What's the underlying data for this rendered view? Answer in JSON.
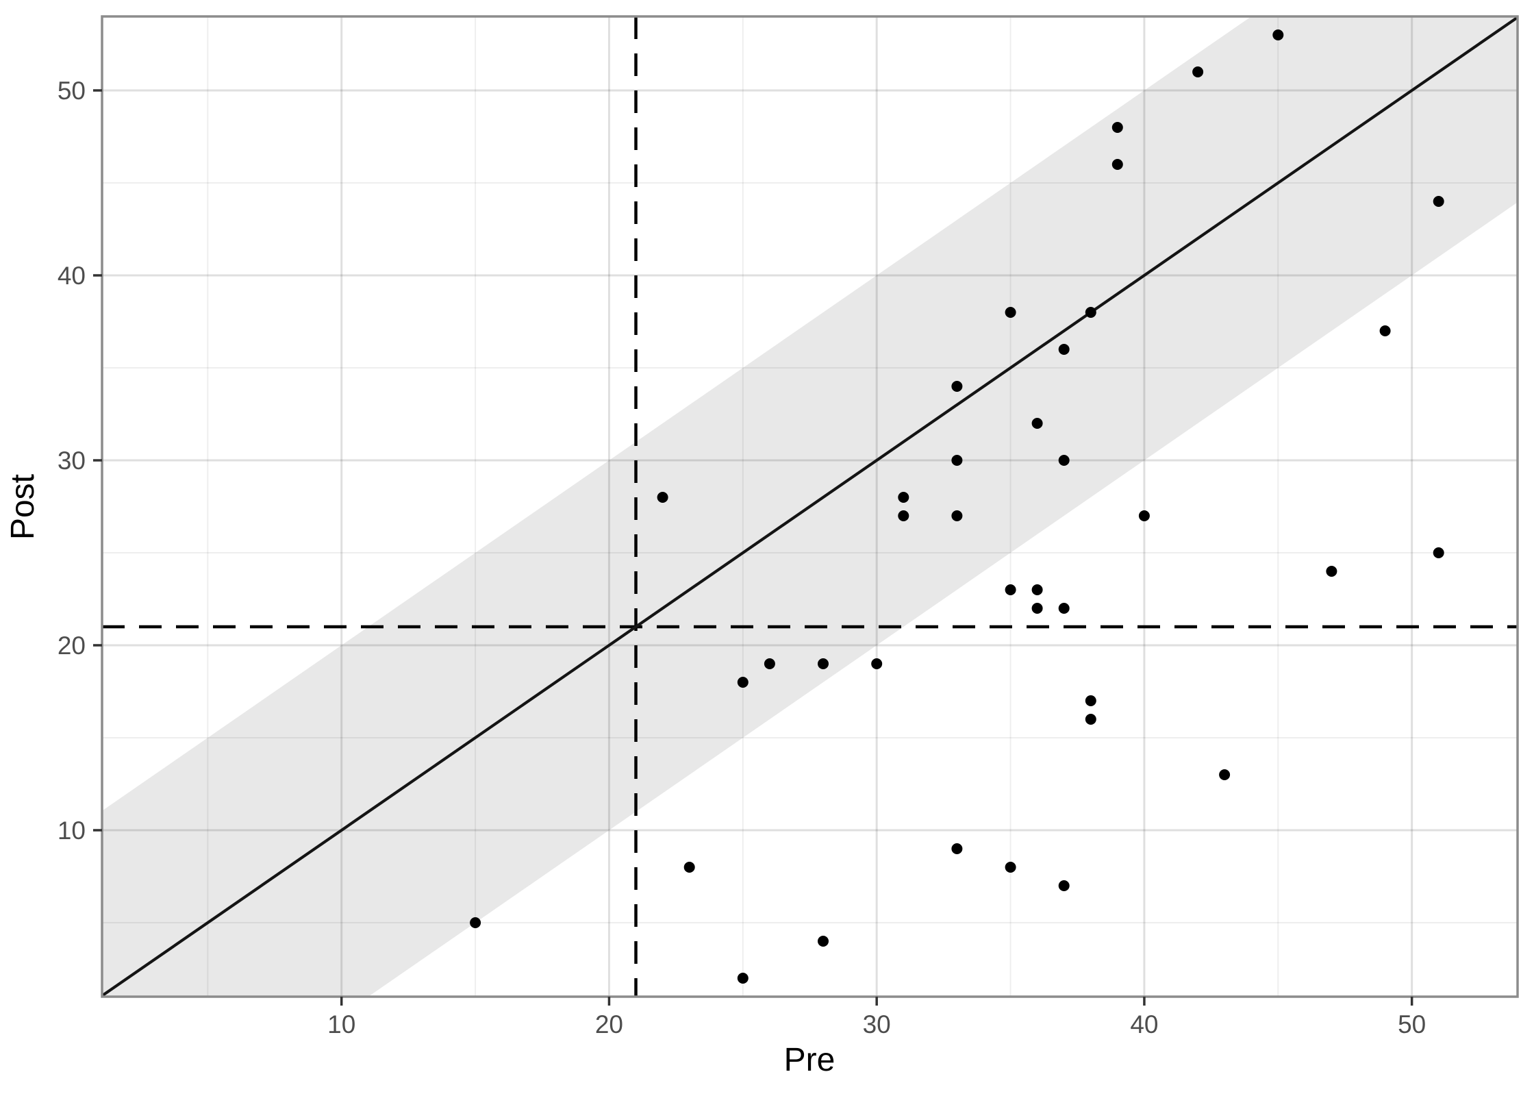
{
  "chart_data": {
    "type": "scatter",
    "title": "",
    "xlabel": "Pre",
    "ylabel": "Post",
    "x_ticks": [
      10,
      20,
      30,
      40,
      50
    ],
    "y_ticks": [
      10,
      20,
      30,
      40,
      50
    ],
    "x_minor_ticks": [
      5,
      15,
      25,
      35,
      45
    ],
    "y_minor_ticks": [
      5,
      15,
      25,
      35,
      45
    ],
    "xlim": [
      1.05,
      53.95
    ],
    "ylim": [
      1.0,
      54.0
    ],
    "grid": true,
    "legend": "none",
    "points": [
      [
        15,
        5
      ],
      [
        22,
        28
      ],
      [
        23,
        8
      ],
      [
        25,
        2
      ],
      [
        25,
        18
      ],
      [
        26,
        19
      ],
      [
        28,
        4
      ],
      [
        28,
        19
      ],
      [
        30,
        19
      ],
      [
        31,
        27
      ],
      [
        31,
        28
      ],
      [
        33,
        9
      ],
      [
        33,
        27
      ],
      [
        33,
        30
      ],
      [
        33,
        34
      ],
      [
        35,
        8
      ],
      [
        35,
        23
      ],
      [
        35,
        38
      ],
      [
        36,
        22
      ],
      [
        36,
        23
      ],
      [
        36,
        32
      ],
      [
        37,
        7
      ],
      [
        37,
        22
      ],
      [
        37,
        30
      ],
      [
        37,
        36
      ],
      [
        38,
        16
      ],
      [
        38,
        17
      ],
      [
        38,
        38
      ],
      [
        39,
        46
      ],
      [
        39,
        48
      ],
      [
        40,
        27
      ],
      [
        42,
        51
      ],
      [
        43,
        13
      ],
      [
        45,
        53
      ],
      [
        47,
        24
      ],
      [
        49,
        37
      ],
      [
        51,
        25
      ],
      [
        51,
        44
      ]
    ],
    "identity_line": {
      "slope": 1,
      "intercept": 0
    },
    "band": {
      "center": "identity",
      "offset": 10
    },
    "dashed_hline_y": 21,
    "dashed_vline_x": 21,
    "colors": {
      "point": "#000000",
      "identity_line": "#141414",
      "dashed_line": "#000000",
      "band_fill": "#e8e8e8",
      "grid_major": "rgba(0,0,0,0.125)",
      "grid_minor": "rgba(0,0,0,0.065)",
      "panel_border": "#8c8c8c",
      "tick_mark": "#333333",
      "tick_label": "#4d4d4d",
      "background": "#ffffff"
    }
  }
}
